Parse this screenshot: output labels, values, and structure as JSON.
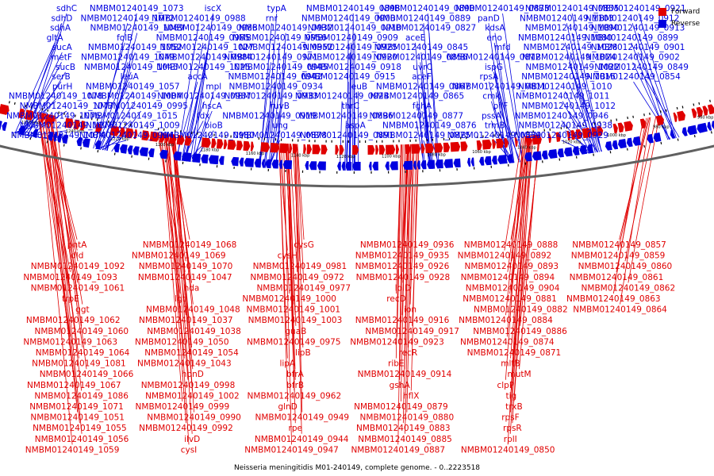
{
  "legend": {
    "items": [
      {
        "label": "Forward",
        "color": "#e00000"
      },
      {
        "label": "Reverse",
        "color": "#0000e0"
      }
    ]
  },
  "caption": "Neisseria meningitidis M01-240149, complete genome. - 0..2223518",
  "colors": {
    "forward": "#e00000",
    "reverse": "#0000e0",
    "backbone": "#606060",
    "ticks": "#000000"
  },
  "axis": {
    "start_kbp": 940,
    "end_kbp": 1290,
    "tick_labels": [
      "1280 kbp",
      "1260 kbp",
      "1240 kbp",
      "1220 kbp",
      "1200 kbp",
      "1180 kbp",
      "1160 kbp",
      "1140 kbp",
      "1120 kbp",
      "1100 kbp",
      "1080 kbp",
      "1060 kbp",
      "1040 kbp",
      "1020 kbp",
      "1000 kbp",
      "980 kbp",
      "960 kbp"
    ]
  },
  "reverse_labels": [
    "sdhC",
    "sdhD",
    "sdhA",
    "gltA",
    "sucA",
    "metF",
    "sucB",
    "serB",
    "purH",
    "NMBM01240149_1078",
    "NMBM01240149_1077",
    "NMBM01240149_1076",
    "NMBM01240149_1075",
    "NMBM01240149_1074",
    "NMBM01240149_1073",
    "NMBM01240149_1072",
    "NMBM01240149_1089",
    "folB",
    "NMBM01240149_1052",
    "NMBM01240149_1049",
    "NMBM01240149_1045",
    "leuA",
    "NMBM01240149_1057",
    "NMBM01240149_1004",
    "NMBM01240149_0995",
    "NMBM01240149_1015",
    "NMBM01240149_1009",
    "NMBM01240149_0994",
    "iscX",
    "NMBM01240149_0988",
    "NMBM01240149_0986",
    "NMBM01240149_0985",
    "NMBM01240149_1027",
    "NMBM01240149_0984",
    "NMBM01240149_1025",
    "accA",
    "mpl",
    "NMBM01240149_0987",
    "hscA",
    "fdx",
    "bioB",
    "NMBM01240149_0980",
    "typA",
    "rnr",
    "NMBM01240149_0932",
    "NMBM01240149_0956",
    "NMBM01240149_0952",
    "NMBM01240149_0971",
    "NMBM01240149_0945",
    "NMBM01240149_0942",
    "NMBM01240149_0934",
    "NMBM01240149_0933",
    "ruvB",
    "NMBM01240149_0919",
    "ung",
    "NMBM01240149_0878",
    "NMBM01240149_0898",
    "NMBM01240149_0900",
    "NMBM01240149_0910",
    "NMBM01240149_0909",
    "NMBM01240149_0925",
    "NMBM01240149_0920",
    "NMBM01240149_0918",
    "NMBM01240149_0915",
    "leuB",
    "NMBM01240149_0924",
    "thrC",
    "NMBM01240149_0896",
    "aspA",
    "NMBM01240149_0891",
    "NMBM01240149_0890",
    "NMBM01240149_0889",
    "NMBM01240149_0827",
    "aceE",
    "NMBM01240149_0845",
    "NMBM01240149_0856",
    "uvrC",
    "aceF",
    "NMBM01240149_0867",
    "NMBM01240149_0865",
    "fghA",
    "NMBM01240149_0877",
    "NMBM01240149_0876",
    "NMBM01240149_0875",
    "NMBM01240149_0873",
    "panD",
    "kdsA",
    "eno",
    "mfd",
    "NMBM01240149_0812",
    "ispG",
    "rpsA",
    "NMBM01240149_0811",
    "cmk",
    "pilF",
    "pssA",
    "trmB",
    "NMBM01240149_0839",
    "NMBM01240149_0855",
    "NMBM01240149_1103",
    "NMBM01240149_1090",
    "NMBM01240149_1080",
    "NMBM01240149_1028",
    "NMBM01240149_1024",
    "NMBM01240149_1022",
    "NMBM01240149_1016",
    "NMBM01240149_1010",
    "NMBM01240149_1011",
    "NMBM01240149_1012",
    "NMBM01240149_0946",
    "NMBM01240149_0938",
    "NMBM01240149_0929",
    "NMBM01240149_0921",
    "NMBM01240149_0912",
    "NMBM01240149_0913",
    "NMBM01240149_0899",
    "NMBM01240149_0901",
    "NMBM01240149_0902",
    "NMBM01240149_0849",
    "NMBM01240149_0854"
  ],
  "forward_labels": [
    "pntA",
    "dld",
    "NMBM01240149_1092",
    "NMBM01240149_1093",
    "NMBM01240149_1061",
    "trpE",
    "ggt",
    "NMBM01240149_1062",
    "NMBM01240149_1060",
    "NMBM01240149_1063",
    "NMBM01240149_1064",
    "NMBM01240149_1081",
    "NMBM01240149_1066",
    "NMBM01240149_1067",
    "NMBM01240149_1086",
    "NMBM01240149_1071",
    "NMBM01240149_1051",
    "NMBM01240149_1055",
    "NMBM01240149_1056",
    "NMBM01240149_1059",
    "NMBM01240149_1068",
    "NMBM01240149_1069",
    "NMBM01240149_1070",
    "NMBM01240149_1047",
    "hda",
    "lgt",
    "NMBM01240149_1048",
    "NMBM01240149_1037",
    "NMBM01240149_1038",
    "NMBM01240149_1050",
    "NMBM01240149_1054",
    "NMBM01240149_1043",
    "hpnD",
    "NMBM01240149_0998",
    "NMBM01240149_1002",
    "NMBM01240149_0999",
    "NMBM01240149_0990",
    "NMBM01240149_0992",
    "ilvD",
    "cysI",
    "cysG",
    "cysH",
    "NMBM01240149_0981",
    "NMBM01240149_0972",
    "NMBM01240149_0977",
    "NMBM01240149_1000",
    "NMBM01240149_1001",
    "NMBM01240149_1003",
    "guaB",
    "NMBM01240149_0975",
    "lipB",
    "lipA",
    "bfrA",
    "bfrB",
    "NMBM01240149_0962",
    "glnD",
    "NMBM01240149_0949",
    "rpe",
    "NMBM01240149_0944",
    "NMBM01240149_0947",
    "NMBM01240149_0936",
    "NMBM01240149_0935",
    "NMBM01240149_0926",
    "NMBM01240149_0928",
    "lolD",
    "recD",
    "ion",
    "NMBM01240149_0916",
    "NMBM01240149_0917",
    "NMBM01240149_0923",
    "recR",
    "ribE",
    "NMBM01240149_0914",
    "gshA",
    "hflX",
    "NMBM01240149_0879",
    "NMBM01240149_0880",
    "NMBM01240149_0883",
    "NMBM01240149_0885",
    "NMBM01240149_0887",
    "NMBM01240149_0888",
    "NMBM01240149_0892",
    "NMBM01240149_0893",
    "NMBM01240149_0894",
    "NMBM01240149_0904",
    "NMBM01240149_0881",
    "NMBM01240149_0882",
    "NMBM01240149_0884",
    "NMBM01240149_0886",
    "NMBM01240149_0874",
    "NMBM01240149_0871",
    "mltB",
    "mutM",
    "clpP",
    "tig",
    "trxB",
    "rpsF",
    "rpsR",
    "rplI",
    "NMBM01240149_0850",
    "NMBM01240149_0857",
    "NMBM01240149_0859",
    "NMBM01240149_0860",
    "NMBM01240149_0861",
    "NMBM01240149_0862",
    "NMBM01240149_0863",
    "NMBM01240149_0864"
  ]
}
